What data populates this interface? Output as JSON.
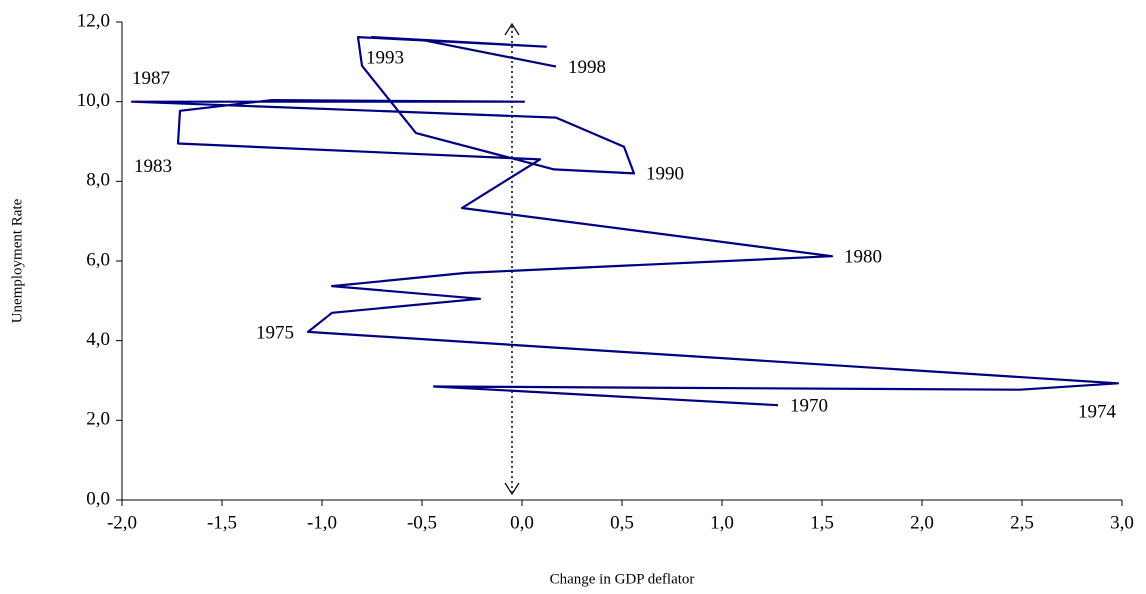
{
  "chart_data": {
    "type": "line",
    "x_label": "Change in GDP deflator",
    "y_label": "Unemployment Rate",
    "color": "#000080",
    "x": [
      1.28,
      -0.44,
      2.49,
      2.98,
      -1.07,
      -0.95,
      -0.21,
      -0.95,
      -0.28,
      1.55,
      -0.3,
      0.09,
      -1.72,
      -1.71,
      -1.25,
      0.01,
      -1.95,
      0.17,
      0.51,
      0.56,
      0.16,
      -0.53,
      -0.8,
      -0.82,
      0.12,
      -0.75,
      -0.5,
      0.17
    ],
    "y": [
      2.38,
      2.85,
      2.77,
      2.93,
      4.22,
      4.7,
      5.05,
      5.37,
      5.7,
      6.12,
      7.33,
      8.55,
      8.95,
      9.77,
      10.04,
      10.0,
      10.0,
      9.6,
      8.87,
      8.2,
      8.3,
      9.21,
      10.9,
      11.62,
      11.38,
      11.62,
      11.55,
      10.88
    ],
    "point_labels": [
      "1970",
      null,
      null,
      "1974",
      "1975",
      null,
      null,
      null,
      null,
      "1980",
      null,
      null,
      "1983",
      null,
      null,
      null,
      "1987",
      null,
      null,
      "1990",
      null,
      null,
      null,
      "1993",
      null,
      null,
      null,
      "1998"
    ],
    "xlim": [
      -2,
      3
    ],
    "ylim": [
      0,
      12
    ],
    "xticks": [
      {
        "value": -2,
        "label": "-2,0"
      },
      {
        "value": -1.5,
        "label": "-1,5"
      },
      {
        "value": -1,
        "label": "-1,0"
      },
      {
        "value": -0.5,
        "label": "-0,5"
      },
      {
        "value": 0,
        "label": "0,0"
      },
      {
        "value": 0.5,
        "label": "0,5"
      },
      {
        "value": 1,
        "label": "1,0"
      },
      {
        "value": 1.5,
        "label": "1,5"
      },
      {
        "value": 2,
        "label": "2,0"
      },
      {
        "value": 2.5,
        "label": "2,5"
      },
      {
        "value": 3,
        "label": "3,0"
      }
    ],
    "yticks": [
      {
        "value": 0,
        "label": "0,0"
      },
      {
        "value": 2,
        "label": "2,0"
      },
      {
        "value": 4,
        "label": "4,0"
      },
      {
        "value": 6,
        "label": "6,0"
      },
      {
        "value": 8,
        "label": "8,0"
      },
      {
        "value": 10,
        "label": "10,0"
      },
      {
        "value": 12,
        "label": "12,0"
      }
    ],
    "grid": false
  }
}
